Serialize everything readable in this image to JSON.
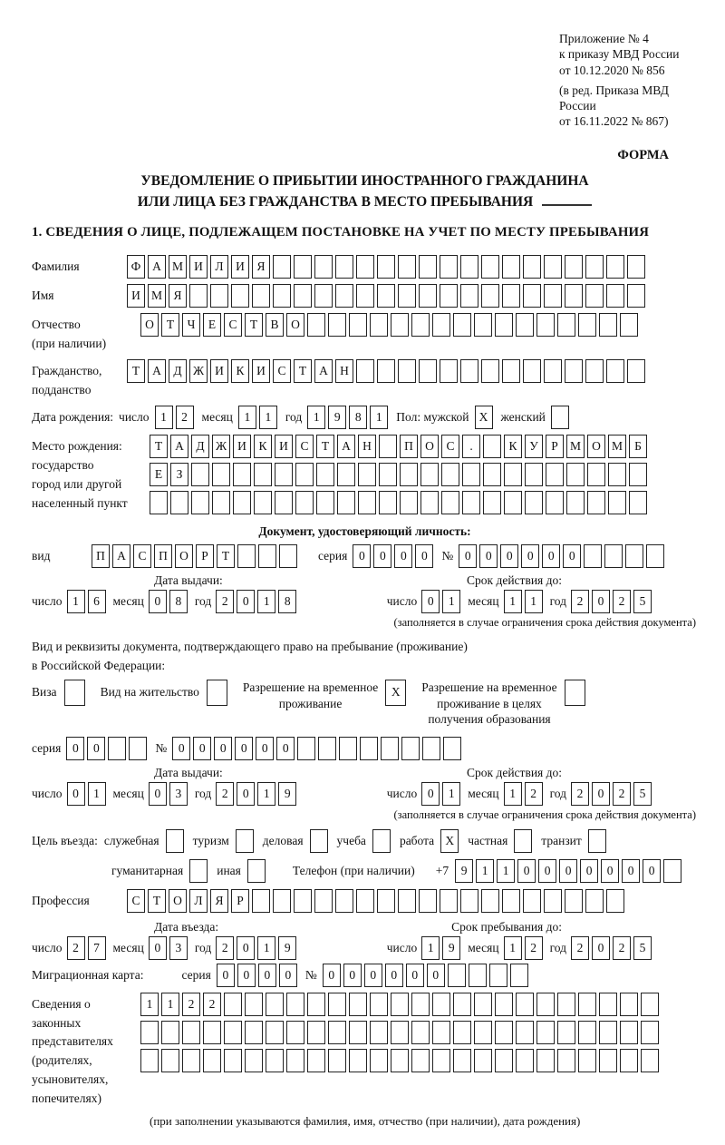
{
  "header": {
    "lines": [
      "Приложение № 4",
      "к приказу МВД России",
      "от 10.12.2020 № 856"
    ],
    "lines2": [
      "(в ред. Приказа МВД России",
      "от 16.11.2022 № 867)"
    ],
    "forma": "ФОРМА"
  },
  "title": {
    "line1": "УВЕДОМЛЕНИЕ О ПРИБЫТИИ ИНОСТРАННОГО ГРАЖДАНИНА",
    "line2": "ИЛИ ЛИЦА БЕЗ ГРАЖДАНСТВА В МЕСТО ПРЕБЫВАНИЯ"
  },
  "section1_heading": "1. СВЕДЕНИЯ О ЛИЦЕ, ПОДЛЕЖАЩЕМ ПОСТАНОВКЕ НА УЧЕТ ПО МЕСТУ ПРЕБЫВАНИЯ",
  "labels": {
    "day": "число",
    "month": "месяц",
    "year": "год",
    "seriya": "серия",
    "number": "№",
    "vid": "вид"
  },
  "fields": {
    "surname": {
      "label": "Фамилия",
      "boxes": {
        "v": "ФАМИЛИЯ",
        "n": 25
      }
    },
    "name": {
      "label": "Имя",
      "boxes": {
        "v": "ИМЯ",
        "n": 25
      }
    },
    "patronymic": {
      "label": "Отчество",
      "label2": "(при наличии)",
      "boxes": {
        "v": "ОТЧЕСТВО",
        "n": 24
      }
    },
    "citizenship": {
      "label": "Гражданство,",
      "label2": "подданство",
      "boxes": {
        "v": "ТАДЖИКИСТАН",
        "n": 25
      }
    },
    "birth_date": {
      "label": "Дата рождения:",
      "day": {
        "v": "12",
        "n": 2
      },
      "month": {
        "v": "11",
        "n": 2
      },
      "year": {
        "v": "1981",
        "n": 4
      },
      "sex_label": "Пол: мужской",
      "male_box": {
        "v": "X",
        "n": 1
      },
      "female_label": "женский",
      "female_box": {
        "v": "",
        "n": 1
      }
    },
    "birth_place": {
      "label": "Место рождения:",
      "label2": "государство",
      "label3": "город или другой",
      "label4": "населенный пункт",
      "line1": {
        "v": "ТАДЖИКИСТАН ПОС. КУРМОМБ",
        "n": 24
      },
      "line2": {
        "v": "ЕЗ",
        "n": 24
      },
      "line3": {
        "v": "",
        "n": 24
      }
    }
  },
  "identity_doc": {
    "heading": "Документ, удостоверяющий личность:",
    "vid": {
      "v": "ПАСПОРТ",
      "n": 10
    },
    "seriya": {
      "v": "0000",
      "n": 4
    },
    "number": {
      "v": "000000",
      "n": 10
    },
    "issue_heading": "Дата выдачи:",
    "issue": {
      "day": {
        "v": "16",
        "n": 2
      },
      "month": {
        "v": "08",
        "n": 2
      },
      "year": {
        "v": "2018",
        "n": 4
      }
    },
    "expiry_heading": "Срок действия до:",
    "expiry": {
      "day": {
        "v": "01",
        "n": 2
      },
      "month": {
        "v": "11",
        "n": 2
      },
      "year": {
        "v": "2025",
        "n": 4
      }
    },
    "note": "(заполняется в случае ограничения срока действия документа)"
  },
  "residence_doc": {
    "intro1": "Вид и реквизиты документа, подтверждающего право на пребывание (проживание)",
    "intro2": "в Российской Федерации:",
    "visa_label": "Виза",
    "visa_box": {
      "v": "",
      "n": 1
    },
    "vnzh_label": "Вид на жительство",
    "vnzh_box": {
      "v": "",
      "n": 1
    },
    "rvp_label1": "Разрешение на временное",
    "rvp_label2": "проживание",
    "rvp_box": {
      "v": "X",
      "n": 1
    },
    "rvpo_label1": "Разрешение на временное",
    "rvpo_label2": "проживание в целях",
    "rvpo_label3": "получения образования",
    "rvpo_box": {
      "v": "",
      "n": 1
    },
    "seriya": {
      "v": "00",
      "n": 4
    },
    "number": {
      "v": "000000",
      "n": 14
    },
    "issue_heading": "Дата выдачи:",
    "issue": {
      "day": {
        "v": "01",
        "n": 2
      },
      "month": {
        "v": "03",
        "n": 2
      },
      "year": {
        "v": "2019",
        "n": 4
      }
    },
    "expiry_heading": "Срок действия до:",
    "expiry": {
      "day": {
        "v": "01",
        "n": 2
      },
      "month": {
        "v": "12",
        "n": 2
      },
      "year": {
        "v": "2025",
        "n": 4
      }
    },
    "note": "(заполняется в случае ограничения срока действия документа)"
  },
  "visit": {
    "label": "Цель въезда:",
    "purposes": [
      {
        "label": "служебная",
        "box": {
          "v": "",
          "n": 1
        }
      },
      {
        "label": "туризм",
        "box": {
          "v": "",
          "n": 1
        }
      },
      {
        "label": "деловая",
        "box": {
          "v": "",
          "n": 1
        }
      },
      {
        "label": "учеба",
        "box": {
          "v": "",
          "n": 1
        }
      },
      {
        "label": "работа",
        "box": {
          "v": "X",
          "n": 1
        }
      },
      {
        "label": "частная",
        "box": {
          "v": "",
          "n": 1
        }
      },
      {
        "label": "транзит",
        "box": {
          "v": "",
          "n": 1
        }
      },
      {
        "label": "гуманитарная",
        "box": {
          "v": "",
          "n": 1
        }
      },
      {
        "label": "иная",
        "box": {
          "v": "",
          "n": 1
        }
      }
    ],
    "phone_label": "Телефон (при наличии)",
    "phone_prefix": "+7",
    "phone": {
      "v": "9110000000",
      "n": 11
    },
    "profession_label": "Профессия",
    "profession": {
      "v": "СТОЛЯР",
      "n": 24
    },
    "entry_heading": "Дата въезда:",
    "entry": {
      "day": {
        "v": "27",
        "n": 2
      },
      "month": {
        "v": "03",
        "n": 2
      },
      "year": {
        "v": "2019",
        "n": 4
      }
    },
    "stay_heading": "Срок пребывания до:",
    "stay": {
      "day": {
        "v": "19",
        "n": 2
      },
      "month": {
        "v": "12",
        "n": 2
      },
      "year": {
        "v": "2025",
        "n": 4
      }
    }
  },
  "migration_card": {
    "label": "Миграционная карта:",
    "seriya": {
      "v": "0000",
      "n": 4
    },
    "number": {
      "v": "000000",
      "n": 10
    }
  },
  "representatives": {
    "label_lines": [
      "Сведения о",
      "законных",
      "представителях",
      "(родителях,",
      "усыновителях,",
      "попечителях)"
    ],
    "line1": {
      "v": "1122",
      "n": 25
    },
    "line2": {
      "v": "",
      "n": 25
    },
    "line3": {
      "v": "",
      "n": 25
    },
    "note": "(при заполнении указываются фамилия, имя, отчество (при наличии), дата рождения)"
  }
}
